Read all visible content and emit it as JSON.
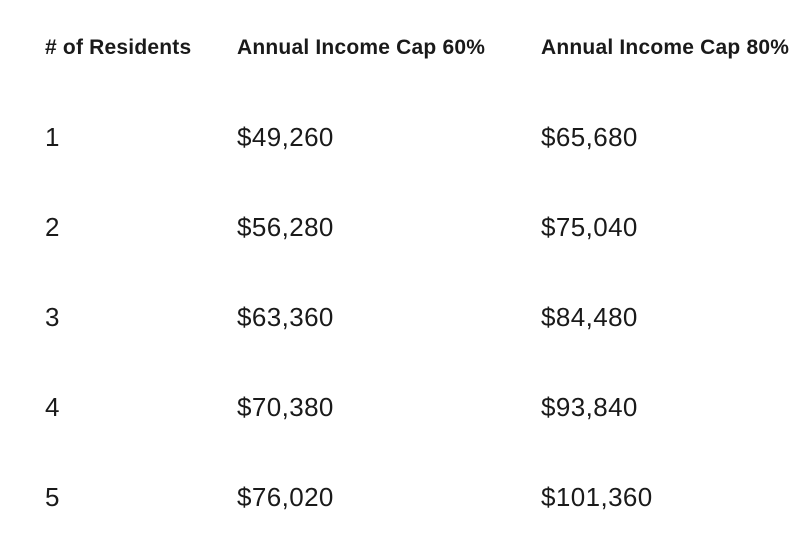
{
  "colors": {
    "background": "#ffffff",
    "text": "#1a1a1a"
  },
  "chart_data": {
    "type": "table",
    "title": "",
    "columns": [
      "# of Residents",
      "Annual Income Cap 60%",
      "Annual Income Cap 80%"
    ],
    "rows": [
      [
        "1",
        "$49,260",
        "$65,680"
      ],
      [
        "2",
        "$56,280",
        "$75,040"
      ],
      [
        "3",
        "$63,360",
        "$84,480"
      ],
      [
        "4",
        "$70,380",
        "$93,840"
      ],
      [
        "5",
        "$76,020",
        "$101,360"
      ]
    ]
  }
}
